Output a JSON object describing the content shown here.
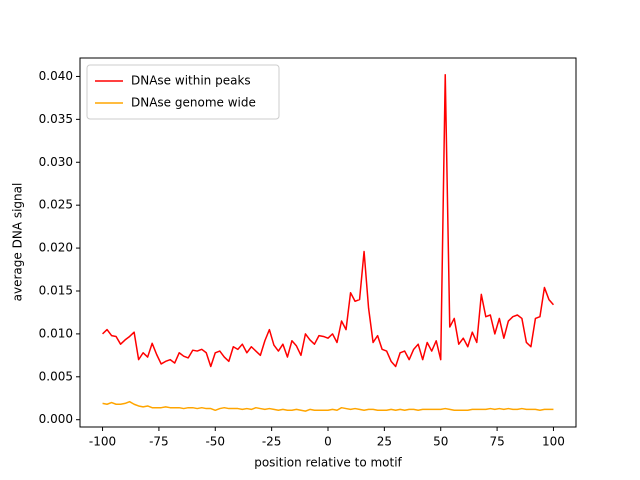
{
  "chart_data": {
    "type": "line",
    "xlabel": "position relative to motif",
    "ylabel": "average DNA signal",
    "x": [
      -100,
      -98,
      -96,
      -94,
      -92,
      -90,
      -88,
      -86,
      -84,
      -82,
      -80,
      -78,
      -76,
      -74,
      -72,
      -70,
      -68,
      -66,
      -64,
      -62,
      -60,
      -58,
      -56,
      -54,
      -52,
      -50,
      -48,
      -46,
      -44,
      -42,
      -40,
      -38,
      -36,
      -34,
      -32,
      -30,
      -28,
      -26,
      -24,
      -22,
      -20,
      -18,
      -16,
      -14,
      -12,
      -10,
      -8,
      -6,
      -4,
      -2,
      0,
      2,
      4,
      6,
      8,
      10,
      12,
      14,
      16,
      18,
      20,
      22,
      24,
      26,
      28,
      30,
      32,
      34,
      36,
      38,
      40,
      42,
      44,
      46,
      48,
      50,
      52,
      54,
      56,
      58,
      60,
      62,
      64,
      66,
      68,
      70,
      72,
      74,
      76,
      78,
      80,
      82,
      84,
      86,
      88,
      90,
      92,
      94,
      96,
      98,
      100
    ],
    "series": [
      {
        "name": "DNAse within peaks",
        "color": "#ff0000",
        "values": [
          0.01,
          0.0105,
          0.0098,
          0.0097,
          0.0088,
          0.0093,
          0.0097,
          0.0102,
          0.007,
          0.0078,
          0.0073,
          0.0089,
          0.0076,
          0.0065,
          0.0068,
          0.007,
          0.0066,
          0.0078,
          0.0074,
          0.0072,
          0.0081,
          0.008,
          0.0082,
          0.0078,
          0.0062,
          0.0078,
          0.008,
          0.0073,
          0.0068,
          0.0085,
          0.0082,
          0.0088,
          0.0078,
          0.0085,
          0.008,
          0.0075,
          0.0092,
          0.0105,
          0.0087,
          0.008,
          0.0088,
          0.0073,
          0.0092,
          0.0086,
          0.0075,
          0.01,
          0.0093,
          0.0088,
          0.0098,
          0.0097,
          0.0095,
          0.01,
          0.009,
          0.0115,
          0.0105,
          0.0148,
          0.0138,
          0.014,
          0.0196,
          0.013,
          0.009,
          0.0098,
          0.0082,
          0.008,
          0.0068,
          0.0062,
          0.0078,
          0.008,
          0.007,
          0.0082,
          0.0088,
          0.007,
          0.009,
          0.008,
          0.0092,
          0.007,
          0.0402,
          0.0108,
          0.0118,
          0.0088,
          0.0095,
          0.0085,
          0.0102,
          0.009,
          0.0146,
          0.012,
          0.0122,
          0.01,
          0.0118,
          0.0095,
          0.0115,
          0.012,
          0.0122,
          0.0118,
          0.009,
          0.0085,
          0.0118,
          0.012,
          0.0154,
          0.014,
          0.0134
        ]
      },
      {
        "name": "DNAse genome wide",
        "color": "#ffa500",
        "values": [
          0.0019,
          0.0018,
          0.002,
          0.0018,
          0.0018,
          0.0019,
          0.0021,
          0.0018,
          0.0016,
          0.0015,
          0.0016,
          0.0014,
          0.0014,
          0.0014,
          0.0015,
          0.0014,
          0.0014,
          0.0014,
          0.0013,
          0.0014,
          0.0014,
          0.0013,
          0.0014,
          0.0013,
          0.0013,
          0.0011,
          0.0013,
          0.0014,
          0.0013,
          0.0013,
          0.0013,
          0.0012,
          0.0013,
          0.0012,
          0.0014,
          0.0013,
          0.0012,
          0.0013,
          0.0012,
          0.0011,
          0.0012,
          0.0011,
          0.0011,
          0.0012,
          0.0011,
          0.001,
          0.0012,
          0.0011,
          0.0011,
          0.0011,
          0.0011,
          0.0012,
          0.0011,
          0.0014,
          0.0013,
          0.0012,
          0.0013,
          0.0012,
          0.0011,
          0.0012,
          0.0012,
          0.0011,
          0.0011,
          0.0011,
          0.0012,
          0.0011,
          0.0012,
          0.0011,
          0.0012,
          0.0012,
          0.0011,
          0.0012,
          0.0012,
          0.0012,
          0.0012,
          0.0012,
          0.0013,
          0.0012,
          0.0011,
          0.0011,
          0.0011,
          0.0011,
          0.0012,
          0.0012,
          0.0012,
          0.0012,
          0.0013,
          0.0012,
          0.0013,
          0.0012,
          0.0013,
          0.0012,
          0.0012,
          0.0013,
          0.0012,
          0.0012,
          0.0012,
          0.0011,
          0.0012,
          0.0012,
          0.0012
        ]
      }
    ],
    "xlim": [
      -110,
      110
    ],
    "ylim": [
      -0.00085,
      0.04215
    ],
    "xticks": [
      -100,
      -75,
      -50,
      -25,
      0,
      25,
      50,
      75,
      100
    ],
    "yticks": [
      {
        "value": 0,
        "label": "0.000"
      },
      {
        "value": 0.005,
        "label": "0.005"
      },
      {
        "value": 0.01,
        "label": "0.010"
      },
      {
        "value": 0.015,
        "label": "0.015"
      },
      {
        "value": 0.02,
        "label": "0.020"
      },
      {
        "value": 0.025,
        "label": "0.025"
      },
      {
        "value": 0.03,
        "label": "0.030"
      },
      {
        "value": 0.035,
        "label": "0.035"
      },
      {
        "value": 0.04,
        "label": "0.040"
      }
    ],
    "legend": "upper left"
  }
}
